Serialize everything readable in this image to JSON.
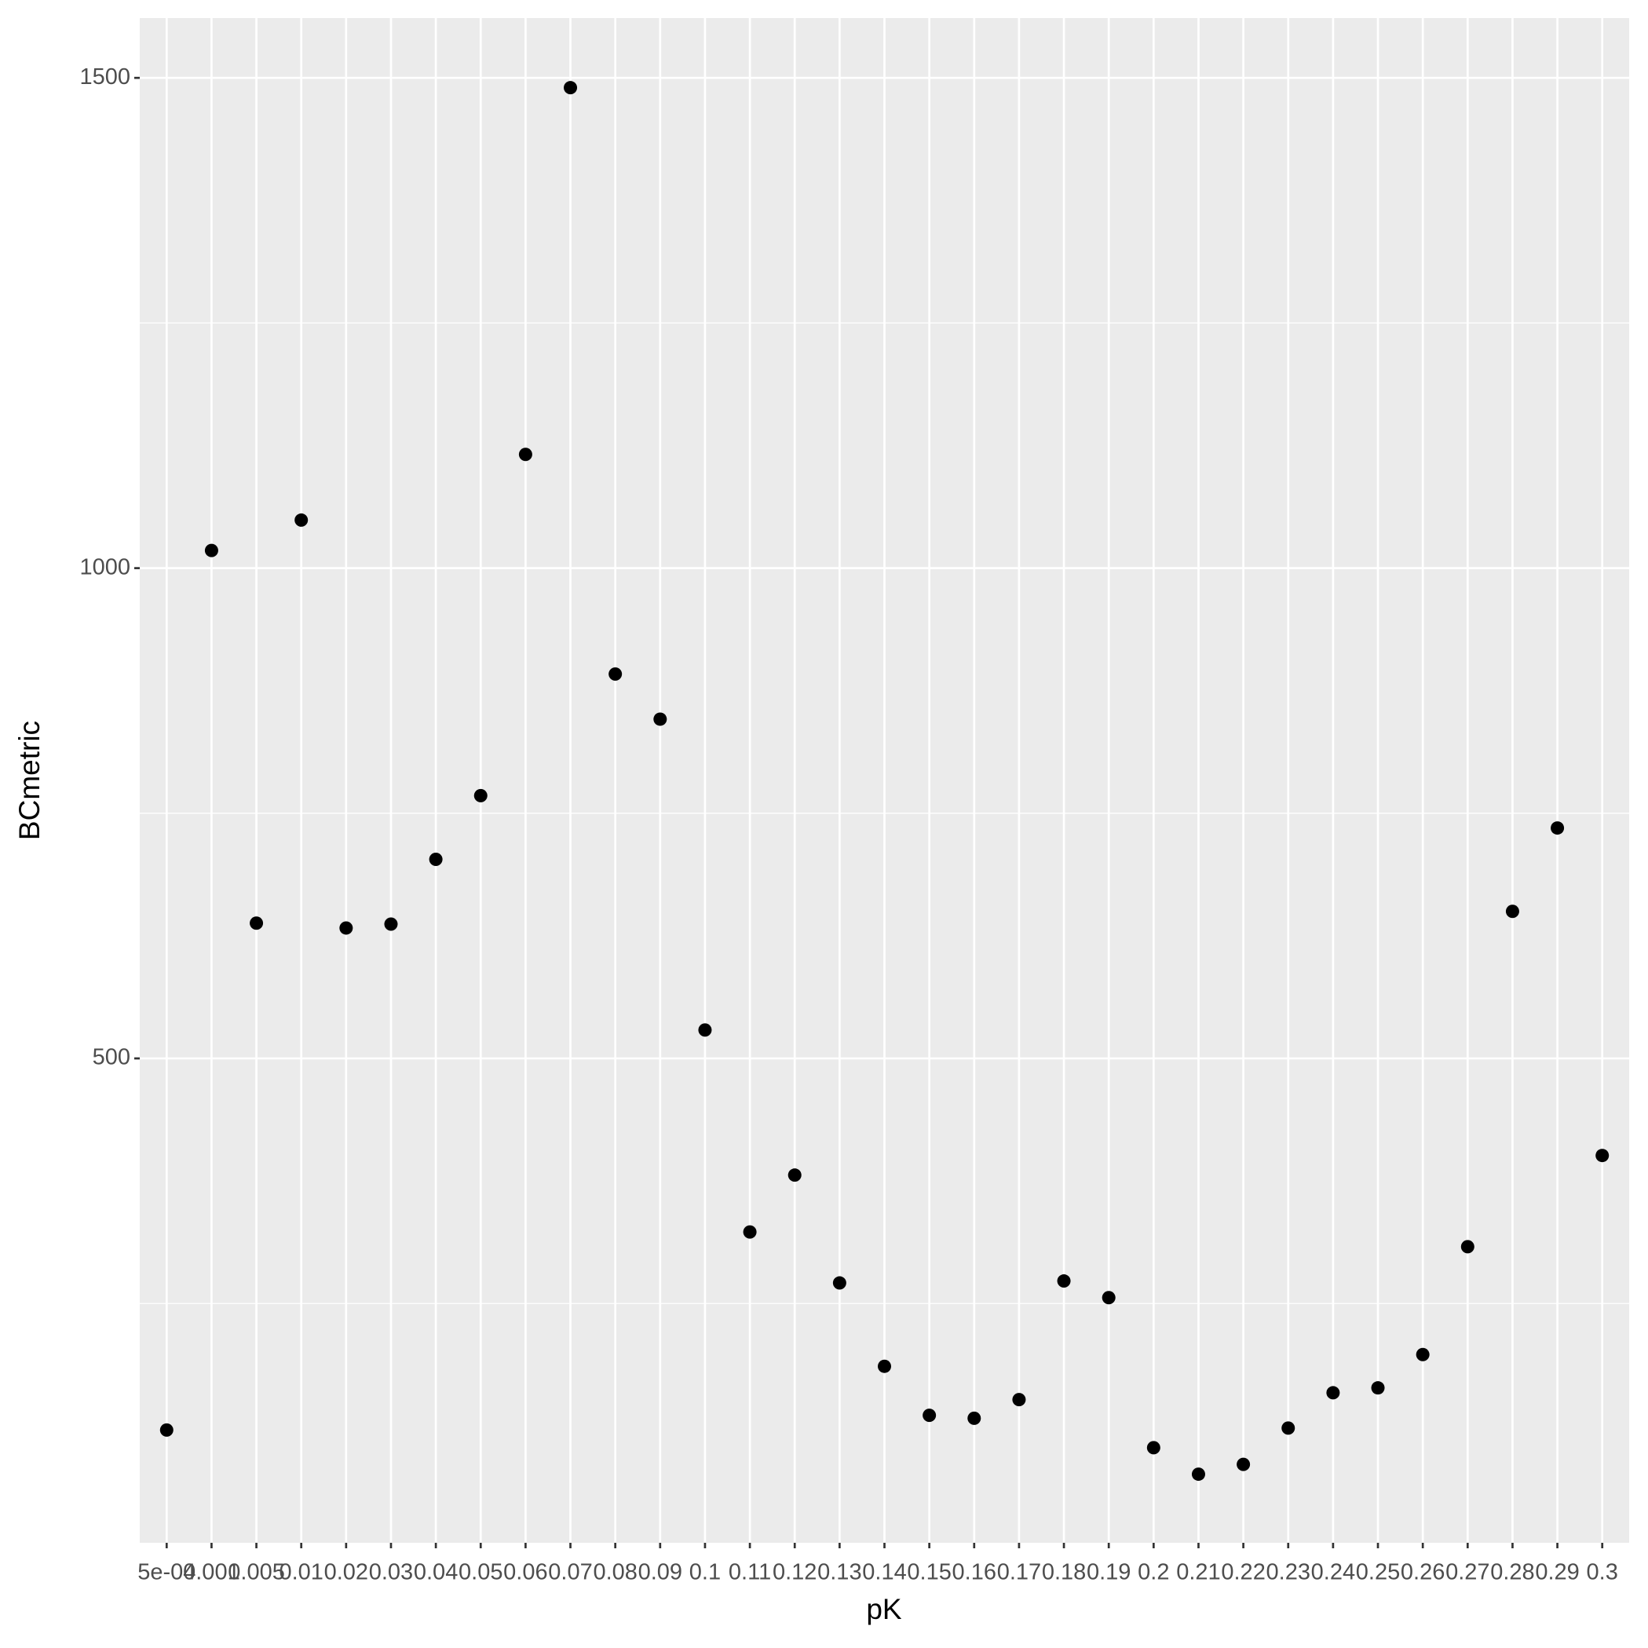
{
  "chart_data": {
    "type": "scatter",
    "x_label": "pK",
    "y_label": "BCmetric",
    "categories": [
      "5e-04",
      "0.001",
      "0.005",
      "0.01",
      "0.02",
      "0.03",
      "0.04",
      "0.05",
      "0.06",
      "0.07",
      "0.08",
      "0.09",
      "0.1",
      "0.11",
      "0.12",
      "0.13",
      "0.14",
      "0.15",
      "0.16",
      "0.17",
      "0.18",
      "0.19",
      "0.2",
      "0.21",
      "0.22",
      "0.23",
      "0.24",
      "0.25",
      "0.26",
      "0.27",
      "0.28",
      "0.29",
      "0.3"
    ],
    "values": [
      121,
      1018,
      638,
      1049,
      633,
      637,
      703,
      768,
      1116,
      1490,
      892,
      846,
      529,
      323,
      381,
      271,
      186,
      136,
      133,
      152,
      273,
      256,
      103,
      76,
      86,
      123,
      159,
      164,
      198,
      308,
      650,
      735,
      401
    ],
    "color": "#000000",
    "ylim": [
      6,
      1561
    ],
    "yticks": [
      500,
      1000,
      1500
    ],
    "grid": true
  }
}
